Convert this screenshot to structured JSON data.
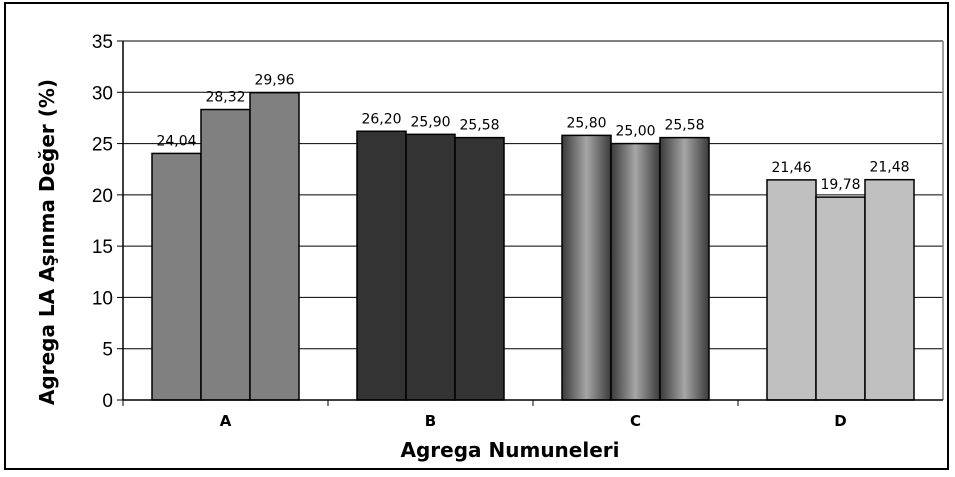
{
  "chart_data": {
    "type": "bar",
    "title": "",
    "xlabel": "Agrega Numuneleri",
    "ylabel": "Agrega LA Aşınma Değer (%)",
    "ylim": [
      0,
      35
    ],
    "yticks": [
      0,
      5,
      10,
      15,
      20,
      25,
      30,
      35
    ],
    "grid": true,
    "legend": "none",
    "categories": [
      "A",
      "B",
      "C",
      "D"
    ],
    "groups": [
      {
        "category": "A",
        "values": [
          24.04,
          28.32,
          29.96
        ],
        "labels": [
          "24,04",
          "28,32",
          "29,96"
        ],
        "fill": "#808080"
      },
      {
        "category": "B",
        "values": [
          26.2,
          25.9,
          25.58
        ],
        "labels": [
          "26,20",
          "25,90",
          "25,58"
        ],
        "fill": "#333333"
      },
      {
        "category": "C",
        "values": [
          25.8,
          25.0,
          25.58
        ],
        "labels": [
          "25,80",
          "25,00",
          "25,58"
        ],
        "fill": "gradient-gray"
      },
      {
        "category": "D",
        "values": [
          21.46,
          19.78,
          21.48
        ],
        "labels": [
          "21,46",
          "19,78",
          "21,48"
        ],
        "fill": "#c0c0c0"
      }
    ]
  }
}
